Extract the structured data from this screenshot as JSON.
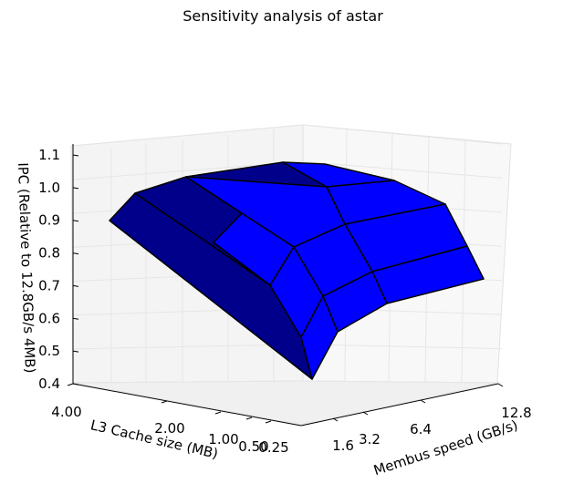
{
  "chart_data": {
    "type": "surface3d",
    "title": "Sensitivity analysis of astar",
    "xlabel": "Membus speed (GB/s)",
    "ylabel": "L3 Cache size (MB)",
    "zlabel": "IPC (Relative to 12.8GB/s 4MB)",
    "x_ticks": [
      "1.6",
      "3.2",
      "6.4",
      "12.8"
    ],
    "y_ticks": [
      "4.00",
      "2.00",
      "1.00",
      "0.50",
      "0.25"
    ],
    "z_ticks": [
      "0.4",
      "0.5",
      "0.6",
      "0.7",
      "0.8",
      "0.9",
      "1.0",
      "1.1"
    ],
    "zlim": [
      0.4,
      1.1
    ],
    "grid": true,
    "colors": {
      "surface_light": "#0000ff",
      "surface_dark": "#00008b",
      "edge": "#000000"
    }
  }
}
